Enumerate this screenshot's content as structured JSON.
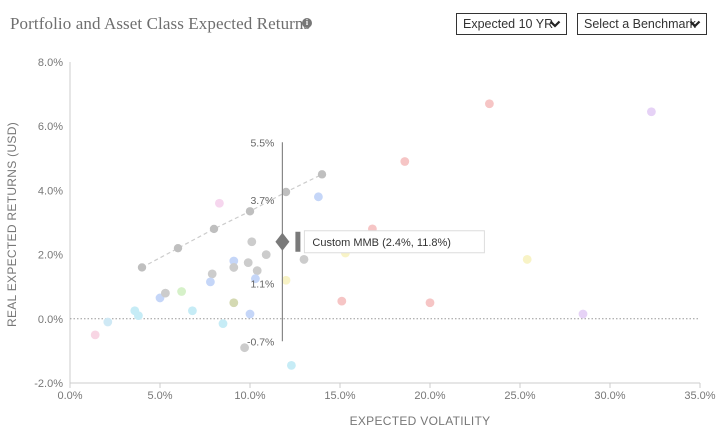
{
  "header": {
    "title": "Portfolio and Asset Class Expected Returns",
    "info_icon": "info-icon",
    "horizon_dropdown": "Expected 10 YR",
    "benchmark_dropdown": "Select a Benchmark",
    "dropdown_icon": "chevron-down-icon"
  },
  "chart_data": {
    "type": "scatter",
    "xlabel": "EXPECTED VOLATILITY",
    "ylabel": "REAL EXPECTED RETURNS (USD)",
    "xlim": [
      0,
      35
    ],
    "ylim": [
      -2,
      8
    ],
    "x_ticks": [
      "0.0%",
      "5.0%",
      "10.0%",
      "15.0%",
      "20.0%",
      "25.0%",
      "30.0%",
      "35.0%"
    ],
    "y_ticks": [
      "8.0%",
      "6.0%",
      "4.0%",
      "2.0%",
      "0.0%",
      "-2.0%"
    ],
    "zero_line": "dotted",
    "grid": false,
    "highlight": {
      "label": "Custom MMB (2.4%, 11.8%)",
      "volatility": 11.8,
      "return": 2.4,
      "range_high_label": "5.5%",
      "range_high": 5.5,
      "range_low_label": "-0.7%",
      "range_low": -0.7,
      "upper_mid_label": "3.7%",
      "upper_mid": 3.7,
      "lower_mid_label": "1.1%",
      "lower_mid": 1.1
    },
    "frontier": [
      {
        "x": 4.0,
        "y": 1.6
      },
      {
        "x": 6.0,
        "y": 2.2
      },
      {
        "x": 8.0,
        "y": 2.8
      },
      {
        "x": 10.0,
        "y": 3.35
      },
      {
        "x": 12.0,
        "y": 3.95
      },
      {
        "x": 14.0,
        "y": 4.5
      }
    ],
    "points": [
      {
        "x": 1.4,
        "y": -0.5,
        "color": "#f8d6e4"
      },
      {
        "x": 2.1,
        "y": -0.1,
        "color": "#cfe9f5"
      },
      {
        "x": 3.6,
        "y": 0.25,
        "color": "#c6ecf6"
      },
      {
        "x": 3.8,
        "y": 0.1,
        "color": "#c6ecf6"
      },
      {
        "x": 5.0,
        "y": 0.65,
        "color": "#c5d6f8"
      },
      {
        "x": 5.3,
        "y": 0.8,
        "color": "#cccccc"
      },
      {
        "x": 6.2,
        "y": 0.85,
        "color": "#d6f1c9"
      },
      {
        "x": 6.8,
        "y": 0.25,
        "color": "#c6ecf6"
      },
      {
        "x": 7.9,
        "y": 1.4,
        "color": "#cccccc"
      },
      {
        "x": 7.8,
        "y": 1.15,
        "color": "#c5d6f8"
      },
      {
        "x": 8.3,
        "y": 3.6,
        "color": "#f6d6ee"
      },
      {
        "x": 8.5,
        "y": -0.15,
        "color": "#c6ecf6"
      },
      {
        "x": 9.1,
        "y": 1.8,
        "color": "#c5d6f8"
      },
      {
        "x": 9.1,
        "y": 1.6,
        "color": "#cccccc"
      },
      {
        "x": 9.1,
        "y": 0.5,
        "color": "#d4d9b2"
      },
      {
        "x": 9.7,
        "y": -0.9,
        "color": "#cccccc"
      },
      {
        "x": 9.9,
        "y": 1.75,
        "color": "#cccccc"
      },
      {
        "x": 10.0,
        "y": 0.15,
        "color": "#c5d6f8"
      },
      {
        "x": 10.1,
        "y": 2.4,
        "color": "#cccccc"
      },
      {
        "x": 10.4,
        "y": 1.5,
        "color": "#cccccc"
      },
      {
        "x": 10.3,
        "y": 1.25,
        "color": "#c5d6f8"
      },
      {
        "x": 10.9,
        "y": 2.0,
        "color": "#cccccc"
      },
      {
        "x": 12.0,
        "y": 1.2,
        "color": "#f8f3c6"
      },
      {
        "x": 12.3,
        "y": -1.45,
        "color": "#c6ecf6"
      },
      {
        "x": 13.0,
        "y": 1.85,
        "color": "#cccccc"
      },
      {
        "x": 13.8,
        "y": 3.8,
        "color": "#c5d6f8"
      },
      {
        "x": 15.1,
        "y": 0.55,
        "color": "#f6c5c5"
      },
      {
        "x": 15.3,
        "y": 2.05,
        "color": "#f8f3c6"
      },
      {
        "x": 16.8,
        "y": 2.8,
        "color": "#f6c5c5"
      },
      {
        "x": 18.6,
        "y": 4.9,
        "color": "#f6c5c5"
      },
      {
        "x": 20.0,
        "y": 0.5,
        "color": "#f6c5c5"
      },
      {
        "x": 23.3,
        "y": 6.7,
        "color": "#f6c5c5"
      },
      {
        "x": 25.4,
        "y": 1.85,
        "color": "#f8f3c6"
      },
      {
        "x": 28.5,
        "y": 0.15,
        "color": "#e6d2f6"
      },
      {
        "x": 32.3,
        "y": 6.45,
        "color": "#e6d2f6"
      }
    ]
  },
  "colors": {
    "axis": "#cccccc",
    "tick_text": "#777777",
    "frontier": "#cccccc",
    "frontier_points": "#bfbfbf",
    "marker": "#7a7a7a",
    "range_line": "#888888"
  }
}
